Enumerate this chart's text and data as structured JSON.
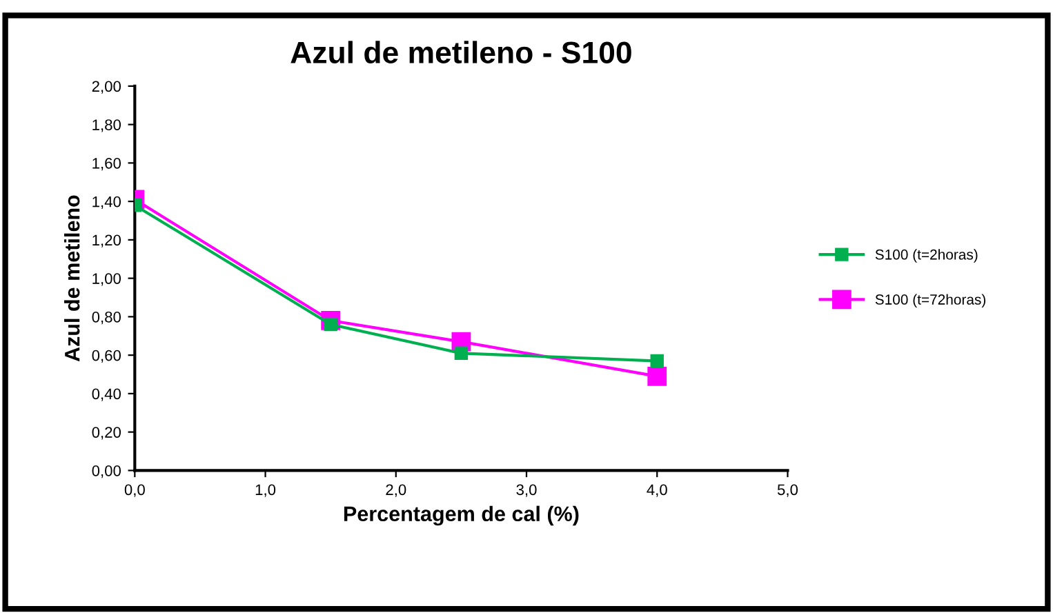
{
  "chart_data": {
    "type": "line",
    "title": "Azul de metileno - S100",
    "xlabel": "Percentagem de cal (%)",
    "ylabel": "Azul de metileno",
    "x": [
      0,
      1.5,
      2.5,
      4.0
    ],
    "series": [
      {
        "name": "S100 (t=2horas)",
        "color": "#00b050",
        "values": [
          1.38,
          0.76,
          0.61,
          0.57
        ]
      },
      {
        "name": "S100 (t=72horas)",
        "color": "#ff00ff",
        "values": [
          1.41,
          0.78,
          0.67,
          0.49
        ]
      }
    ],
    "xlim": [
      0,
      5
    ],
    "xticks": [
      {
        "value": 0,
        "label": "0,0"
      },
      {
        "value": 1,
        "label": "1,0"
      },
      {
        "value": 2,
        "label": "2,0"
      },
      {
        "value": 3,
        "label": "3,0"
      },
      {
        "value": 4,
        "label": "4,0"
      },
      {
        "value": 5,
        "label": "5,0"
      }
    ],
    "ylim": [
      0,
      2
    ],
    "yticks": [
      {
        "value": 0,
        "label": "0,00"
      },
      {
        "value": 0.2,
        "label": "0,20"
      },
      {
        "value": 0.4,
        "label": "0,40"
      },
      {
        "value": 0.6,
        "label": "0,60"
      },
      {
        "value": 0.8,
        "label": "0,80"
      },
      {
        "value": 1.0,
        "label": "1,00"
      },
      {
        "value": 1.2,
        "label": "1,20"
      },
      {
        "value": 1.4,
        "label": "1,40"
      },
      {
        "value": 1.6,
        "label": "1,60"
      },
      {
        "value": 1.8,
        "label": "1,80"
      },
      {
        "value": 2.0,
        "label": "2,00"
      }
    ],
    "grid": false,
    "legend": "right",
    "marker": "square",
    "line_style": "solid"
  }
}
